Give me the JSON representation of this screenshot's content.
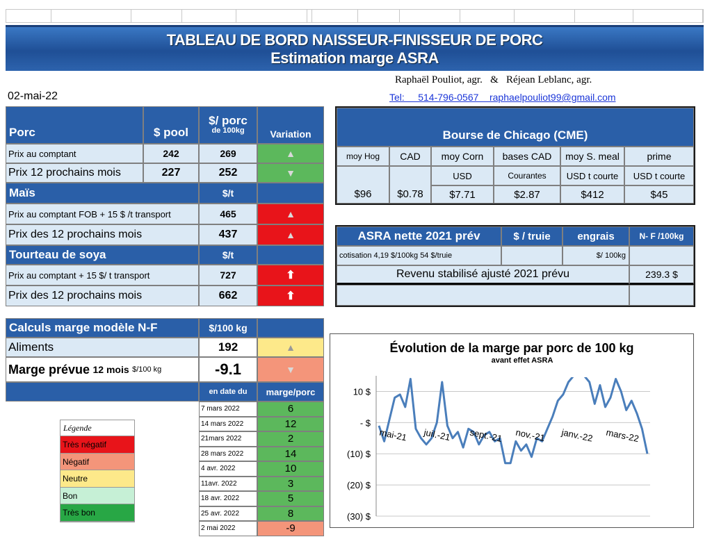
{
  "title": {
    "line1": "TABLEAU  DE BORD NAISSEUR-FINISSEUR  DE PORC",
    "line2": "Estimation marge ASRA"
  },
  "date": "02-mai-22",
  "authors": "Raphaël Pouliot, agr.   &   Réjean Leblanc, agr.",
  "contact": "Tel:     514-796-0567    raphaelpouliot99@gmail.com",
  "porc": {
    "header": {
      "label": "Porc",
      "pool": "$ pool",
      "per_top": "$/ porc",
      "per_bottom": "de 100kg",
      "variation": "Variation"
    },
    "rows": [
      {
        "label": "Prix au comptant",
        "pool": "242",
        "per": "269",
        "arrow": "▲"
      },
      {
        "label": "Prix 12 prochains mois",
        "pool": "227",
        "per": "252",
        "arrow": "▼"
      }
    ]
  },
  "mais": {
    "header": {
      "label": "Maïs",
      "unit": "$/t"
    },
    "rows": [
      {
        "label": "Prix au comptant  FOB + 15 $ /t transport",
        "value": "465",
        "arrow": "▲"
      },
      {
        "label": "Prix des 12 prochains mois",
        "value": "437",
        "arrow": "▲"
      }
    ]
  },
  "soya": {
    "header": {
      "label": "Tourteau de soya",
      "unit": "$/t"
    },
    "rows": [
      {
        "label": "Prix au comptant  + 15 $/ t  transport",
        "value": "727",
        "arrow": "⬆"
      },
      {
        "label": "Prix des 12 prochains mois",
        "value": "662",
        "arrow": "⬆"
      }
    ]
  },
  "calculs": {
    "header": {
      "label": "Calculs marge  modèle N-F",
      "unit": "$/100 kg"
    },
    "aliments": {
      "label": "Aliments",
      "value": "192",
      "arrow": "▲"
    },
    "marge": {
      "label_main": "Marge prévue",
      "label_sub": "12 mois",
      "label_unit": "$/100 kg",
      "value": "-9.1",
      "arrow": "▼"
    },
    "history_header": {
      "date": "en date du",
      "marge": "marge/porc"
    },
    "history": [
      {
        "date": "7 mars 2022",
        "value": "6"
      },
      {
        "date": "14 mars 2022",
        "value": "12"
      },
      {
        "date": "21mars 2022",
        "value": "2"
      },
      {
        "date": "28 mars 2022",
        "value": "14"
      },
      {
        "date": "4 avr. 2022",
        "value": "10"
      },
      {
        "date": "11avr. 2022",
        "value": "3"
      },
      {
        "date": "18 avr. 2022",
        "value": "5"
      },
      {
        "date": "25 avr. 2022",
        "value": "8"
      },
      {
        "date": "2 mai 2022",
        "value": "-9"
      }
    ]
  },
  "legend": {
    "title": "Légende",
    "items": [
      {
        "label": "Très négatif",
        "color": "#e8141a"
      },
      {
        "label": "Négatif",
        "color": "#f4957a"
      },
      {
        "label": "Neutre",
        "color": "#fde98a"
      },
      {
        "label": "Bon",
        "color": "#c6f0d6"
      },
      {
        "label": "Très bon",
        "color": "#28a745"
      }
    ]
  },
  "cme": {
    "title": "Bourse de Chicago (CME)",
    "headers": [
      "moy Hog",
      "CAD",
      "moy Corn",
      "bases CAD",
      "moy S. meal",
      "prime"
    ],
    "units": [
      "",
      "",
      "USD",
      "Courantes",
      "USD t courte",
      "USD t courte"
    ],
    "values": [
      "$96",
      "$0.78",
      "$7.71",
      "$2.87",
      "$412",
      "$45"
    ]
  },
  "asra": {
    "title": "ASRA nette 2021 prév",
    "col_truie": "$ / truie",
    "col_engrais": "engrais",
    "col_nf": "N- F /100kg",
    "cotisation": "cotisation 4,19 $/100kg  54 $/truie",
    "unit_100kg": "$/ 100kg",
    "revenu_label": "Revenu stabilisé ajusté 2021 prévu",
    "revenu_value": "239.3 $"
  },
  "chart_data": {
    "type": "line",
    "title": "Évolution de la marge par porc de 100 kg",
    "subtitle": "avant effet ASRA",
    "xlabel": "",
    "ylabel": "",
    "ylim": [
      -30,
      15
    ],
    "yticks": [
      "10 $",
      "-  $",
      "(10) $",
      "(20) $",
      "(30) $"
    ],
    "ytick_values": [
      10,
      0,
      -10,
      -20,
      -30
    ],
    "xticks": [
      "mai-21",
      "juil.-21",
      "sept.-21",
      "nov.-21",
      "janv.-22",
      "mars-22"
    ],
    "grid": true,
    "series": [
      {
        "color": "#4a7ebb",
        "values": [
          -1,
          -6,
          1,
          8,
          9,
          5,
          14,
          -2,
          -5,
          -7,
          -5,
          0,
          13,
          -1,
          -5,
          -3,
          -8,
          -2,
          -3,
          -7,
          -4,
          -3,
          -6,
          -5,
          -13,
          -13,
          -6,
          -9,
          -7,
          -11,
          -5,
          -6,
          -2,
          2,
          7,
          9,
          13,
          15,
          15,
          15,
          13,
          6,
          12,
          5,
          8,
          14,
          10,
          4,
          7,
          3,
          -2,
          -10
        ]
      }
    ]
  }
}
